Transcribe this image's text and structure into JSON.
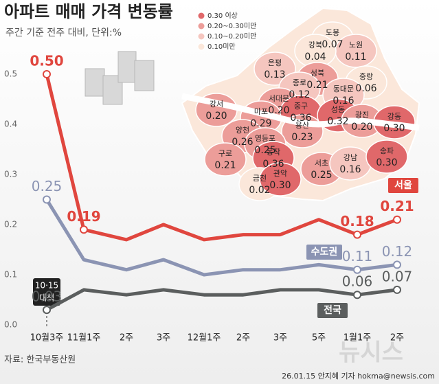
{
  "chart_data": {
    "type": "line",
    "title": "아파트 매매 가격 변동률",
    "subtitle": "주간 기준 전주 대비, 단위:%",
    "source": "자료: 한국부동산원",
    "credit": "26.01.15 안지혜 기자 hokma@newsis.com",
    "watermark": "뉴시스",
    "annotation": [
      "10·15",
      "대책"
    ],
    "categories": [
      "10월3주",
      "11월1주",
      "2주",
      "3주",
      "12월1주",
      "2주",
      "3주",
      "5주",
      "1월1주",
      "2주"
    ],
    "ylim": [
      0,
      0.5
    ],
    "yticks": [
      {
        "value": 0,
        "label": "0.0"
      },
      0.1,
      0.2,
      0.3,
      0.4,
      0.5
    ],
    "grid": false,
    "series": [
      {
        "name": "서울",
        "color": "#e0463e",
        "values": [
          0.5,
          0.19,
          0.17,
          0.2,
          0.17,
          0.18,
          0.18,
          0.21,
          0.18,
          0.21
        ],
        "value_labels": [
          "0.50",
          "0.19",
          null,
          null,
          null,
          null,
          null,
          null,
          "0.18",
          "0.21"
        ]
      },
      {
        "name": "수도권",
        "color": "#8b94b3",
        "values": [
          0.25,
          0.13,
          0.11,
          0.13,
          0.1,
          0.11,
          0.11,
          0.12,
          0.11,
          0.12
        ],
        "value_labels": [
          "0.25",
          null,
          null,
          null,
          null,
          null,
          null,
          null,
          "0.11",
          "0.12"
        ]
      },
      {
        "name": "전국",
        "color": "#5b5e5e",
        "values": [
          0.03,
          0.07,
          0.06,
          0.07,
          0.06,
          0.06,
          0.07,
          0.07,
          0.06,
          0.07
        ],
        "value_labels": [
          "0.03",
          null,
          null,
          null,
          null,
          null,
          null,
          null,
          "0.06",
          "0.07"
        ]
      }
    ]
  },
  "map": {
    "legend": [
      {
        "color": "#e0686a",
        "label": "0.30 이상"
      },
      {
        "color": "#ec9d99",
        "label": "0.20~0.30미만"
      },
      {
        "color": "#f5c6bf",
        "label": "0.10~0.20미만"
      },
      {
        "color": "#fbe7da",
        "label": "0.10미만"
      }
    ],
    "districts": [
      {
        "name": "도봉",
        "value": "0.07"
      },
      {
        "name": "노원",
        "value": "0.11"
      },
      {
        "name": "강북",
        "value": "0.04"
      },
      {
        "name": "은평",
        "value": "0.13"
      },
      {
        "name": "성북",
        "value": "0.21"
      },
      {
        "name": "중랑",
        "value": "0.06"
      },
      {
        "name": "종로",
        "value": "0.12"
      },
      {
        "name": "동대문",
        "value": "0.16"
      },
      {
        "name": "서대문",
        "value": "0.20"
      },
      {
        "name": "강서",
        "value": "0.20"
      },
      {
        "name": "마포",
        "value": "0.29"
      },
      {
        "name": "중구",
        "value": "0.36"
      },
      {
        "name": "성동",
        "value": "0.32"
      },
      {
        "name": "광진",
        "value": "0.20"
      },
      {
        "name": "강동",
        "value": "0.30"
      },
      {
        "name": "양천",
        "value": "0.26"
      },
      {
        "name": "용산",
        "value": "0.23"
      },
      {
        "name": "영등포",
        "value": "0.25"
      },
      {
        "name": "구로",
        "value": "0.21"
      },
      {
        "name": "동작",
        "value": "0.36"
      },
      {
        "name": "서초",
        "value": "0.25"
      },
      {
        "name": "강남",
        "value": "0.16"
      },
      {
        "name": "송파",
        "value": "0.30"
      },
      {
        "name": "금천",
        "value": "0.02"
      },
      {
        "name": "관악",
        "value": "0.30"
      }
    ]
  }
}
